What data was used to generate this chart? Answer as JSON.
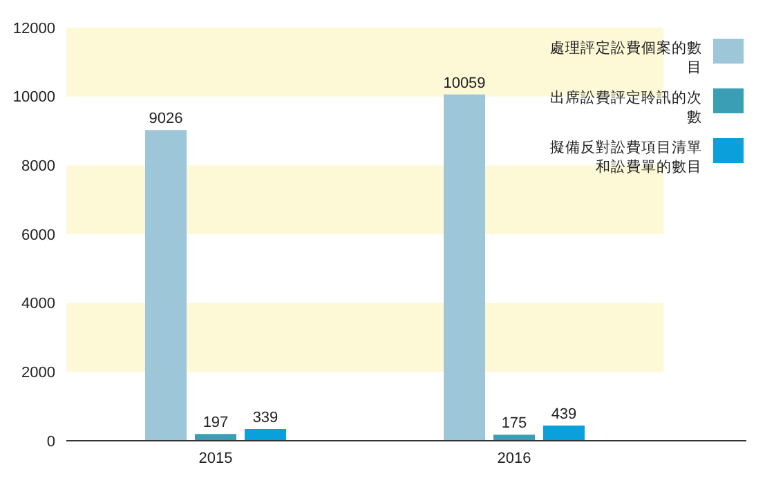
{
  "chart_data": {
    "type": "bar",
    "categories": [
      "2015",
      "2016"
    ],
    "series": [
      {
        "name": "處理評定訟費個案的數目",
        "color": "#9dc6d8",
        "values": [
          9026,
          10059
        ]
      },
      {
        "name": "出席訟費評定聆訊的次數",
        "color": "#3a9fb5",
        "values": [
          197,
          175
        ]
      },
      {
        "name": "擬備反對訟費項目清單和訟費單的數目",
        "color": "#0aa0dc",
        "values": [
          339,
          439
        ]
      }
    ],
    "ylim": [
      0,
      12000
    ],
    "yticks": [
      0,
      2000,
      4000,
      6000,
      8000,
      10000,
      12000
    ],
    "bands": [
      {
        "axis": "y",
        "from": 2000,
        "to": 4000,
        "color": "#fdf8d6"
      },
      {
        "axis": "y",
        "from": 6000,
        "to": 8000,
        "color": "#fdf8d6"
      },
      {
        "axis": "y",
        "from": 10000,
        "to": 12000,
        "color": "#fdf8d6"
      }
    ],
    "data_labels": true,
    "legend": "top right"
  }
}
